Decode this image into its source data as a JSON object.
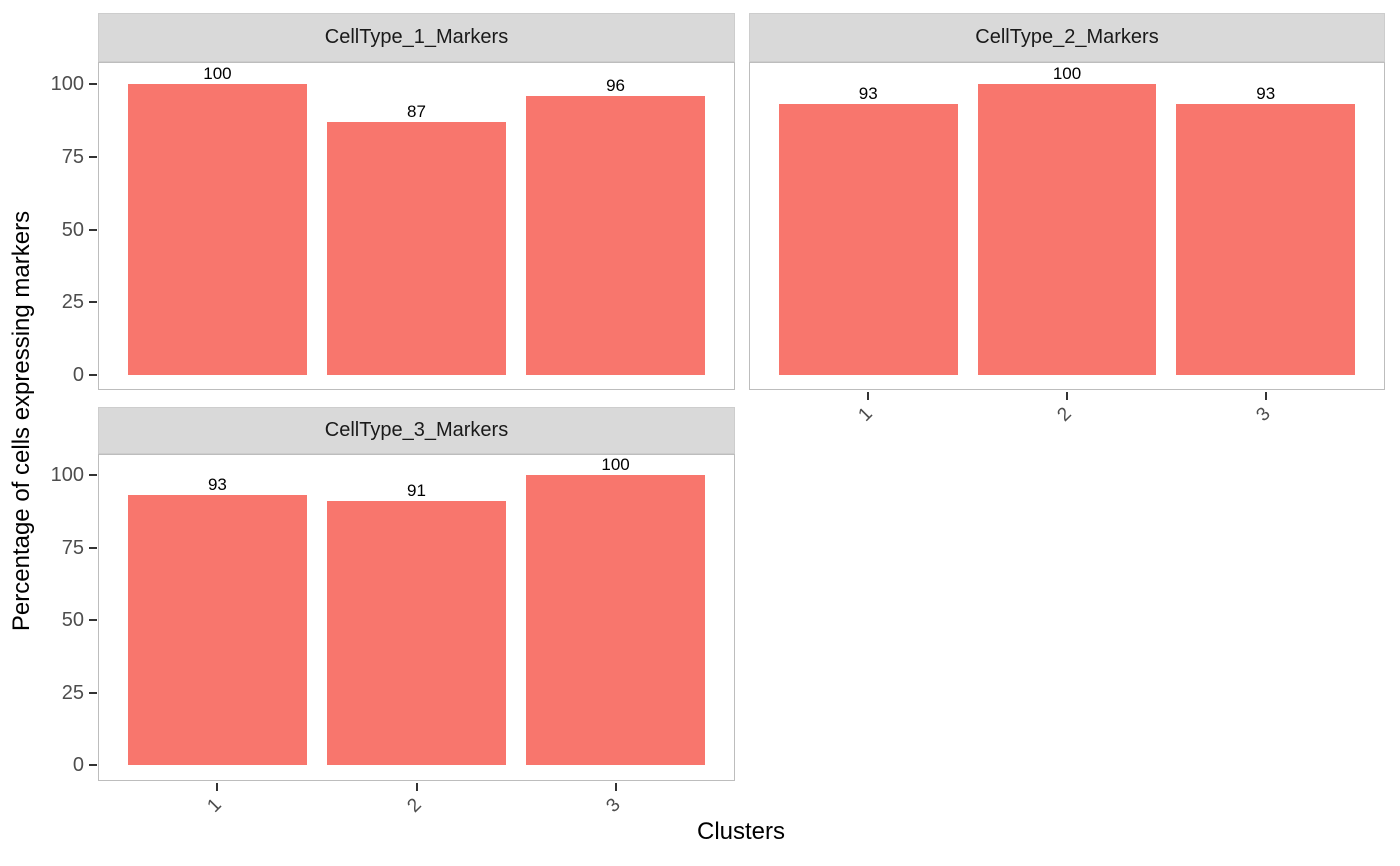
{
  "chart_data": {
    "type": "bar",
    "xlabel": "Clusters",
    "ylabel": "Percentage of cells expressing markers",
    "yticks": [
      0,
      25,
      50,
      75,
      100
    ],
    "ylim": [
      0,
      100
    ],
    "grid": false,
    "legend": false,
    "facet_layout": "wrap-2-columns",
    "facets": [
      {
        "title": "CellType_1_Markers",
        "categories": [
          "1",
          "2",
          "3"
        ],
        "values": [
          100,
          87,
          96
        ]
      },
      {
        "title": "CellType_2_Markers",
        "categories": [
          "1",
          "2",
          "3"
        ],
        "values": [
          93,
          100,
          93
        ]
      },
      {
        "title": "CellType_3_Markers",
        "categories": [
          "1",
          "2",
          "3"
        ],
        "values": [
          93,
          91,
          100
        ]
      }
    ],
    "colors": {
      "bar_fill": "#F8766D",
      "strip_background": "#D9D9D9",
      "strip_text": "#1A1A1A",
      "panel_border": "#BDBDBD",
      "tick_label": "#4D4D4D",
      "axis_title": "#000000",
      "value_label": "#000000",
      "tick_mark": "#333333"
    }
  }
}
